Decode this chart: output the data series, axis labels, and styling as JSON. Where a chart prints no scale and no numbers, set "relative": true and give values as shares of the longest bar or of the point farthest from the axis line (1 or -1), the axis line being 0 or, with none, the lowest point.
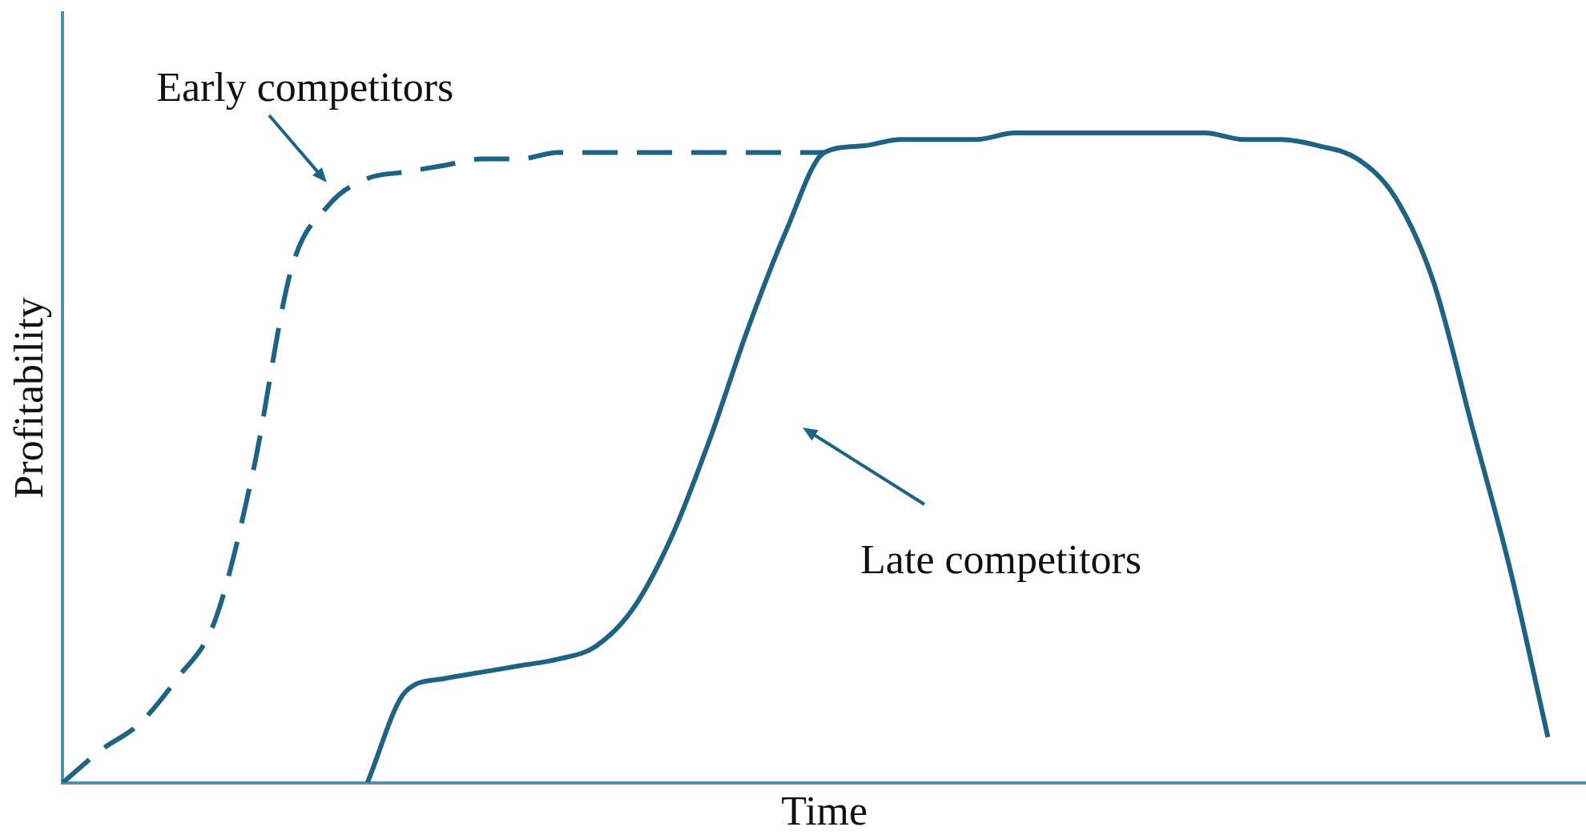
{
  "chart_data": {
    "type": "line",
    "relative": true,
    "xlabel": "Time",
    "ylabel": "Profitability",
    "grid": false,
    "tick_labels": false,
    "marker": "none",
    "categories": [
      null,
      null,
      null,
      null,
      null,
      null,
      null,
      null,
      null,
      null,
      null,
      null,
      null,
      null,
      null,
      null,
      null,
      null,
      null,
      null,
      null,
      null,
      null,
      null,
      null,
      null,
      null,
      null,
      null,
      null,
      null,
      null,
      null,
      null,
      null,
      null,
      null,
      null,
      null,
      null,
      null
    ],
    "series": [
      {
        "name": "Early competitors",
        "color": "#1f6384",
        "line_style": "dashed",
        "values": [
          0,
          0.05,
          0.09,
          0.16,
          0.25,
          0.48,
          0.79,
          0.89,
          0.93,
          0.94,
          0.95,
          0.96,
          0.96,
          0.97,
          0.97,
          0.97,
          0.97,
          0.97,
          0.97,
          0.97,
          0.97,
          null,
          null,
          null,
          null,
          null,
          null,
          null,
          null,
          null,
          null,
          null,
          null,
          null,
          null,
          null,
          null,
          null,
          null,
          null,
          null
        ]
      },
      {
        "name": "Late competitors",
        "color": "#1f6384",
        "line_style": "solid",
        "values": [
          null,
          null,
          null,
          null,
          null,
          null,
          null,
          null,
          0,
          0.14,
          0.16,
          0.17,
          0.18,
          0.19,
          0.21,
          0.27,
          0.38,
          0.53,
          0.7,
          0.85,
          0.97,
          0.98,
          0.99,
          0.99,
          0.99,
          1,
          1,
          1,
          1,
          1,
          1,
          0.99,
          0.99,
          0.98,
          0.96,
          0.9,
          0.77,
          0.55,
          0.33,
          0.07,
          null
        ]
      }
    ]
  }
}
